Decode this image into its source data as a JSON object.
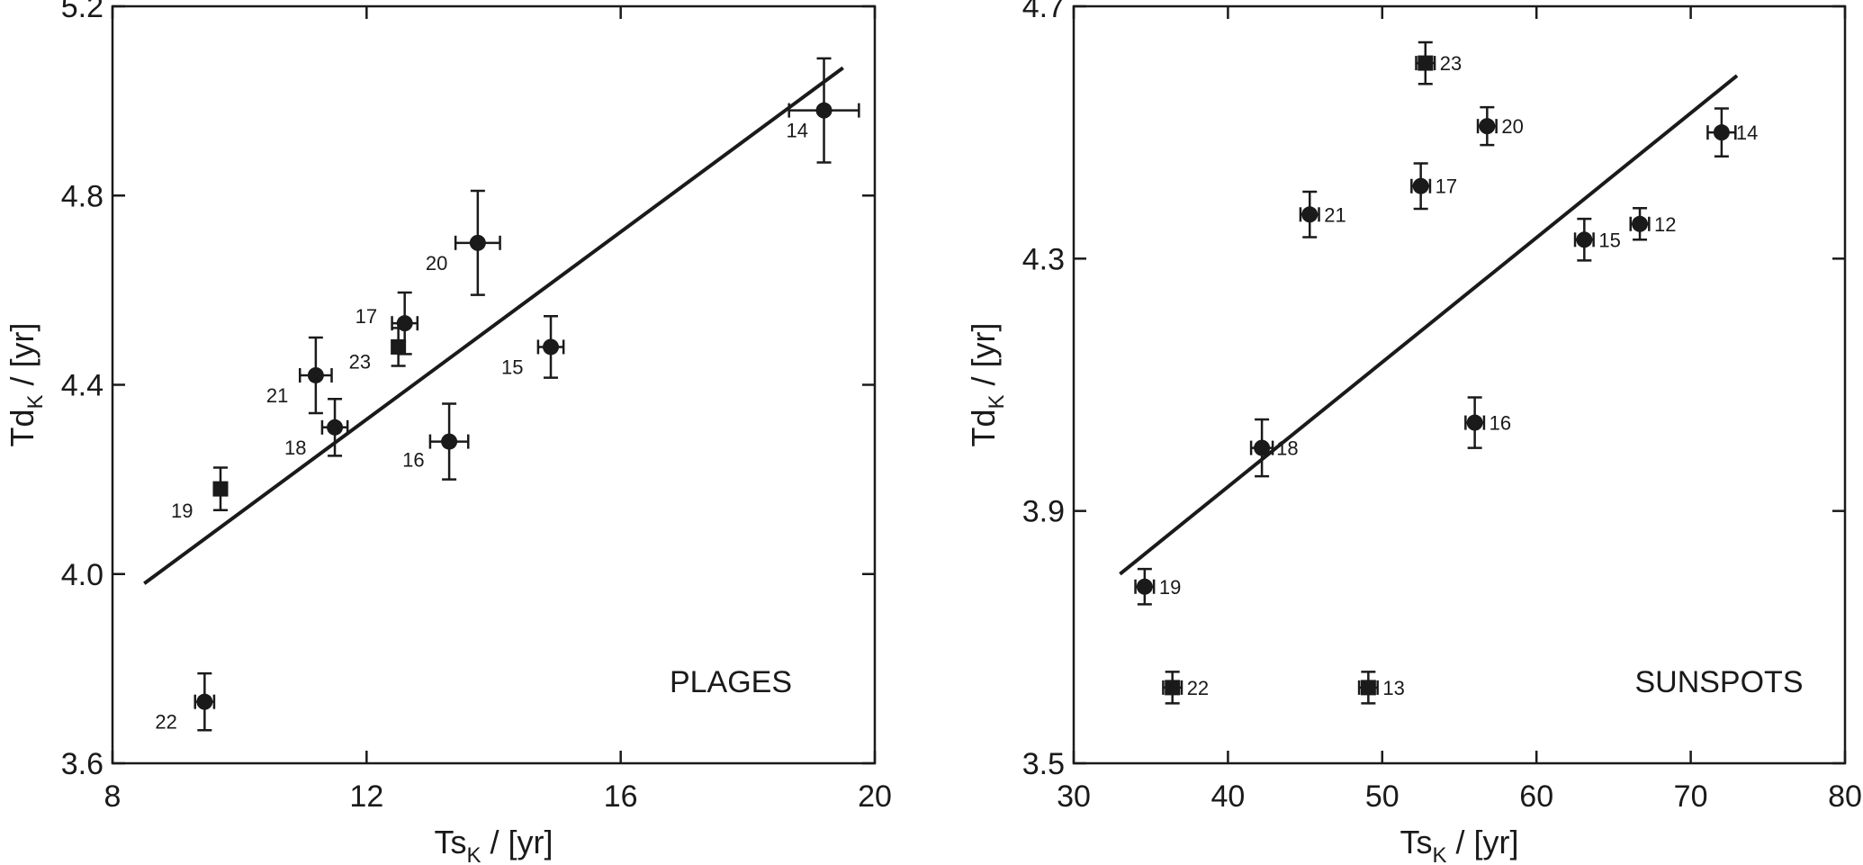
{
  "chart_data": [
    {
      "type": "scatter",
      "title": "PLAGES",
      "xlabel": {
        "main": "Ts",
        "sub": "K",
        "unit": " / [yr]"
      },
      "ylabel": {
        "main": "Td",
        "sub": "K",
        "unit": " / [yr]"
      },
      "xlim": [
        8,
        20
      ],
      "ylim": [
        3.6,
        5.2
      ],
      "xticks": [
        8,
        12,
        16,
        20
      ],
      "yticks": [
        3.6,
        4.0,
        4.4,
        4.8,
        5.2
      ],
      "xtick_labels": [
        "8",
        "12",
        "16",
        "20"
      ],
      "ytick_labels": [
        "3.6",
        "4.0",
        "4.4",
        "4.8",
        "5.2"
      ],
      "grid": false,
      "fit_line": {
        "x": [
          8.5,
          19.5
        ],
        "y": [
          3.98,
          5.07
        ]
      },
      "points": [
        {
          "label": "14",
          "x": 19.2,
          "y": 4.98,
          "xerr": 0.55,
          "yerr": 0.11,
          "marker": "circle"
        },
        {
          "label": "20",
          "x": 13.75,
          "y": 4.7,
          "xerr": 0.35,
          "yerr": 0.11,
          "marker": "circle"
        },
        {
          "label": "17",
          "x": 12.6,
          "y": 4.53,
          "xerr": 0.2,
          "yerr": 0.065,
          "marker": "circle"
        },
        {
          "label": "23",
          "x": 12.5,
          "y": 4.48,
          "xerr": 0.0,
          "yerr": 0.04,
          "marker": "square"
        },
        {
          "label": "15",
          "x": 14.9,
          "y": 4.48,
          "xerr": 0.2,
          "yerr": 0.065,
          "marker": "circle"
        },
        {
          "label": "21",
          "x": 11.2,
          "y": 4.42,
          "xerr": 0.25,
          "yerr": 0.08,
          "marker": "circle"
        },
        {
          "label": "18",
          "x": 11.5,
          "y": 4.31,
          "xerr": 0.2,
          "yerr": 0.06,
          "marker": "circle"
        },
        {
          "label": "16",
          "x": 13.3,
          "y": 4.28,
          "xerr": 0.3,
          "yerr": 0.08,
          "marker": "circle"
        },
        {
          "label": "19",
          "x": 9.7,
          "y": 4.18,
          "xerr": 0.0,
          "yerr": 0.045,
          "marker": "square"
        },
        {
          "label": "22",
          "x": 9.45,
          "y": 3.73,
          "xerr": 0.15,
          "yerr": 0.06,
          "marker": "circle"
        }
      ]
    },
    {
      "type": "scatter",
      "title": "SUNSPOTS",
      "xlabel": {
        "main": "Ts",
        "sub": "K",
        "unit": " / [yr]"
      },
      "ylabel": {
        "main": "Td",
        "sub": "K",
        "unit": " / [yr]"
      },
      "xlim": [
        30,
        80
      ],
      "ylim": [
        3.5,
        4.7
      ],
      "xticks": [
        30,
        40,
        50,
        60,
        70,
        80
      ],
      "yticks": [
        3.5,
        3.9,
        4.3,
        4.7
      ],
      "xtick_labels": [
        "30",
        "40",
        "50",
        "60",
        "70",
        "80"
      ],
      "ytick_labels": [
        "3.5",
        "3.9",
        "4.3",
        "4.7"
      ],
      "grid": false,
      "fit_line": {
        "x": [
          33,
          73
        ],
        "y": [
          3.8,
          4.59
        ]
      },
      "points": [
        {
          "label": "23",
          "x": 52.8,
          "y": 4.61,
          "xerr": 0.6,
          "yerr": 0.033,
          "marker": "square"
        },
        {
          "label": "20",
          "x": 56.8,
          "y": 4.51,
          "xerr": 0.6,
          "yerr": 0.03,
          "marker": "circle"
        },
        {
          "label": "14",
          "x": 72.0,
          "y": 4.5,
          "xerr": 0.9,
          "yerr": 0.038,
          "marker": "circle"
        },
        {
          "label": "17",
          "x": 52.5,
          "y": 4.415,
          "xerr": 0.6,
          "yerr": 0.036,
          "marker": "circle"
        },
        {
          "label": "21",
          "x": 45.3,
          "y": 4.37,
          "xerr": 0.6,
          "yerr": 0.036,
          "marker": "circle"
        },
        {
          "label": "12",
          "x": 66.7,
          "y": 4.355,
          "xerr": 0.6,
          "yerr": 0.025,
          "marker": "circle"
        },
        {
          "label": "15",
          "x": 63.1,
          "y": 4.33,
          "xerr": 0.6,
          "yerr": 0.033,
          "marker": "circle"
        },
        {
          "label": "16",
          "x": 56.0,
          "y": 4.04,
          "xerr": 0.6,
          "yerr": 0.04,
          "marker": "circle"
        },
        {
          "label": "18",
          "x": 42.2,
          "y": 4.0,
          "xerr": 0.7,
          "yerr": 0.045,
          "marker": "circle"
        },
        {
          "label": "19",
          "x": 34.6,
          "y": 3.78,
          "xerr": 0.6,
          "yerr": 0.028,
          "marker": "circle"
        },
        {
          "label": "22",
          "x": 36.4,
          "y": 3.62,
          "xerr": 0.6,
          "yerr": 0.025,
          "marker": "square"
        },
        {
          "label": "13",
          "x": 49.1,
          "y": 3.62,
          "xerr": 0.6,
          "yerr": 0.025,
          "marker": "square"
        }
      ]
    }
  ]
}
